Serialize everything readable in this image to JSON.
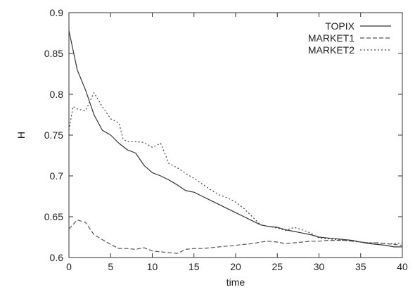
{
  "chart_data": {
    "type": "line",
    "title": "",
    "xlabel": "time",
    "ylabel": "H",
    "xlim": [
      0,
      40
    ],
    "ylim": [
      0.6,
      0.9
    ],
    "x_ticks": [
      0,
      5,
      10,
      15,
      20,
      25,
      30,
      35,
      40
    ],
    "x_tick_labels": [
      "0",
      "5",
      "10",
      "15",
      "20",
      "25",
      "30",
      "35",
      "40"
    ],
    "y_ticks": [
      0.6,
      0.65,
      0.7,
      0.75,
      0.8,
      0.85,
      0.9
    ],
    "y_tick_labels": [
      "0.6",
      "0.65",
      "0.7",
      "0.75",
      "0.8",
      "0.85",
      "0.9"
    ],
    "grid": false,
    "legend_position": "top-right",
    "series": [
      {
        "name": "TOPIX",
        "style": "solid",
        "color": "#333333",
        "points": [
          [
            0,
            0.878
          ],
          [
            1,
            0.83
          ],
          [
            2,
            0.805
          ],
          [
            3,
            0.775
          ],
          [
            4,
            0.756
          ],
          [
            5,
            0.75
          ],
          [
            6,
            0.74
          ],
          [
            7,
            0.732
          ],
          [
            8,
            0.728
          ],
          [
            9,
            0.713
          ],
          [
            10,
            0.704
          ],
          [
            11,
            0.7
          ],
          [
            12,
            0.695
          ],
          [
            13,
            0.689
          ],
          [
            14,
            0.682
          ],
          [
            15,
            0.68
          ],
          [
            16,
            0.675
          ],
          [
            17,
            0.67
          ],
          [
            18,
            0.665
          ],
          [
            19,
            0.66
          ],
          [
            20,
            0.655
          ],
          [
            21,
            0.65
          ],
          [
            22,
            0.645
          ],
          [
            23,
            0.64
          ],
          [
            24,
            0.638
          ],
          [
            25,
            0.637
          ],
          [
            26,
            0.634
          ],
          [
            27,
            0.632
          ],
          [
            28,
            0.63
          ],
          [
            29,
            0.628
          ],
          [
            30,
            0.625
          ],
          [
            31,
            0.624
          ],
          [
            32,
            0.623
          ],
          [
            33,
            0.622
          ],
          [
            34,
            0.621
          ],
          [
            35,
            0.619
          ],
          [
            36,
            0.617
          ],
          [
            37,
            0.616
          ],
          [
            38,
            0.615
          ],
          [
            39,
            0.613
          ],
          [
            40,
            0.613
          ]
        ]
      },
      {
        "name": "MARKET1",
        "style": "dashed",
        "color": "#555555",
        "points": [
          [
            0,
            0.635
          ],
          [
            1,
            0.646
          ],
          [
            2,
            0.643
          ],
          [
            3,
            0.628
          ],
          [
            4,
            0.622
          ],
          [
            5,
            0.616
          ],
          [
            6,
            0.611
          ],
          [
            7,
            0.611
          ],
          [
            8,
            0.61
          ],
          [
            9,
            0.612
          ],
          [
            10,
            0.608
          ],
          [
            11,
            0.607
          ],
          [
            12,
            0.606
          ],
          [
            13,
            0.605
          ],
          [
            14,
            0.61
          ],
          [
            15,
            0.611
          ],
          [
            16,
            0.611
          ],
          [
            17,
            0.612
          ],
          [
            18,
            0.613
          ],
          [
            19,
            0.614
          ],
          [
            20,
            0.615
          ],
          [
            21,
            0.616
          ],
          [
            22,
            0.617
          ],
          [
            23,
            0.619
          ],
          [
            24,
            0.62
          ],
          [
            25,
            0.619
          ],
          [
            26,
            0.617
          ],
          [
            27,
            0.618
          ],
          [
            28,
            0.619
          ],
          [
            29,
            0.62
          ],
          [
            30,
            0.62
          ],
          [
            31,
            0.621
          ],
          [
            32,
            0.621
          ],
          [
            33,
            0.621
          ],
          [
            34,
            0.62
          ],
          [
            35,
            0.619
          ],
          [
            36,
            0.618
          ],
          [
            37,
            0.618
          ],
          [
            38,
            0.617
          ],
          [
            39,
            0.616
          ],
          [
            40,
            0.615
          ]
        ]
      },
      {
        "name": "MARKET2",
        "style": "dotted",
        "color": "#444444",
        "points": [
          [
            0,
            0.756
          ],
          [
            0.5,
            0.785
          ],
          [
            1,
            0.782
          ],
          [
            2,
            0.78
          ],
          [
            3,
            0.802
          ],
          [
            4,
            0.785
          ],
          [
            5,
            0.77
          ],
          [
            6,
            0.765
          ],
          [
            6.5,
            0.745
          ],
          [
            7,
            0.742
          ],
          [
            8,
            0.742
          ],
          [
            9,
            0.741
          ],
          [
            10,
            0.735
          ],
          [
            11,
            0.74
          ],
          [
            12,
            0.715
          ],
          [
            13,
            0.71
          ],
          [
            14,
            0.703
          ],
          [
            15,
            0.697
          ],
          [
            16,
            0.69
          ],
          [
            17,
            0.683
          ],
          [
            18,
            0.677
          ],
          [
            19,
            0.673
          ],
          [
            20,
            0.668
          ],
          [
            21,
            0.66
          ],
          [
            22,
            0.65
          ],
          [
            23,
            0.64
          ],
          [
            24,
            0.638
          ],
          [
            25,
            0.636
          ],
          [
            26,
            0.633
          ],
          [
            27,
            0.637
          ],
          [
            28,
            0.634
          ],
          [
            29,
            0.63
          ],
          [
            30,
            0.624
          ],
          [
            31,
            0.623
          ],
          [
            32,
            0.622
          ],
          [
            33,
            0.621
          ],
          [
            34,
            0.62
          ],
          [
            35,
            0.619
          ],
          [
            36,
            0.618
          ],
          [
            37,
            0.618
          ],
          [
            38,
            0.617
          ],
          [
            39,
            0.617
          ],
          [
            40,
            0.618
          ]
        ]
      }
    ]
  }
}
